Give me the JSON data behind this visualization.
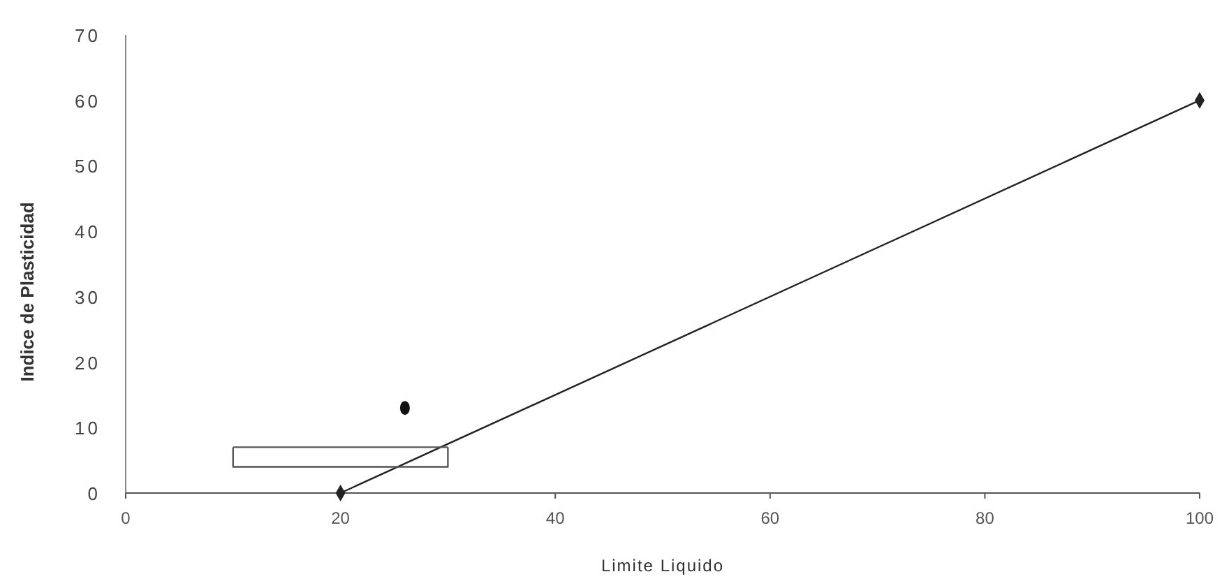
{
  "chart_data": {
    "type": "line",
    "xlabel": "Limite Liquido",
    "ylabel": "Indice de Plasticidad",
    "xlim": [
      0,
      100
    ],
    "xticks": [
      0,
      20,
      40,
      60,
      80,
      100
    ],
    "ylim": [
      0,
      70
    ],
    "yticks": [
      0,
      10,
      20,
      30,
      40,
      50,
      60,
      70
    ],
    "grid": false,
    "series": [
      {
        "color": "#222222",
        "x": [
          20,
          100
        ],
        "values": [
          0,
          60
        ],
        "marker": "diamond"
      },
      {
        "type": "scatter",
        "color": "#111111",
        "x": [
          26
        ],
        "values": [
          13
        ],
        "marker": "circle"
      },
      {
        "type": "line",
        "color": "#555555",
        "x": [
          10,
          10,
          30,
          30
        ],
        "values": [
          7,
          4,
          4,
          7
        ],
        "marker": "none"
      },
      {
        "type": "line",
        "color": "#555555",
        "x": [
          10,
          30
        ],
        "values": [
          7,
          7
        ],
        "marker": "none"
      }
    ]
  }
}
